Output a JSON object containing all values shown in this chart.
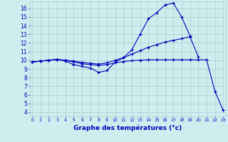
{
  "xlabel": "Graphe des températures (°c)",
  "background_color": "#cceeee",
  "grid_color": "#aacccc",
  "line_color": "#0000bb",
  "x_ticks": [
    0,
    1,
    2,
    3,
    4,
    5,
    6,
    7,
    8,
    9,
    10,
    11,
    12,
    13,
    14,
    15,
    16,
    17,
    18,
    19,
    20,
    21,
    22,
    23
  ],
  "y_ticks": [
    4,
    5,
    6,
    7,
    8,
    9,
    10,
    11,
    12,
    13,
    14,
    15,
    16
  ],
  "ylim_min": 3.5,
  "ylim_max": 16.8,
  "xlim_min": -0.3,
  "xlim_max": 23.3,
  "line1_x": [
    0,
    1,
    2,
    3,
    4,
    5,
    6,
    7,
    8,
    9,
    10,
    11,
    12,
    13,
    14,
    15,
    16,
    17,
    18,
    19
  ],
  "line1_y": [
    9.8,
    9.9,
    10.0,
    10.1,
    9.9,
    9.5,
    9.3,
    9.1,
    8.6,
    8.8,
    9.8,
    10.3,
    11.2,
    13.0,
    14.8,
    15.5,
    16.4,
    16.6,
    15.0,
    12.8
  ],
  "line2_x": [
    0,
    1,
    2,
    3,
    4,
    5,
    6,
    7,
    8,
    9,
    10,
    11,
    12,
    13,
    14,
    15,
    16,
    17,
    18,
    19,
    20
  ],
  "line2_y": [
    9.8,
    9.9,
    10.0,
    10.05,
    10.0,
    9.9,
    9.75,
    9.65,
    9.55,
    9.7,
    10.0,
    10.3,
    10.7,
    11.1,
    11.5,
    11.8,
    12.1,
    12.3,
    12.5,
    12.7,
    10.4
  ],
  "line3_x": [
    0,
    1,
    2,
    3,
    4,
    5,
    6,
    7,
    8,
    9,
    10,
    11,
    12,
    13,
    14,
    15,
    16,
    17,
    18,
    19,
    20,
    21,
    22,
    23
  ],
  "line3_y": [
    9.8,
    9.9,
    10.0,
    10.1,
    10.0,
    9.8,
    9.6,
    9.5,
    9.4,
    9.5,
    9.7,
    9.85,
    9.95,
    10.0,
    10.05,
    10.05,
    10.05,
    10.05,
    10.05,
    10.05,
    10.05,
    10.05,
    6.4,
    4.2
  ]
}
